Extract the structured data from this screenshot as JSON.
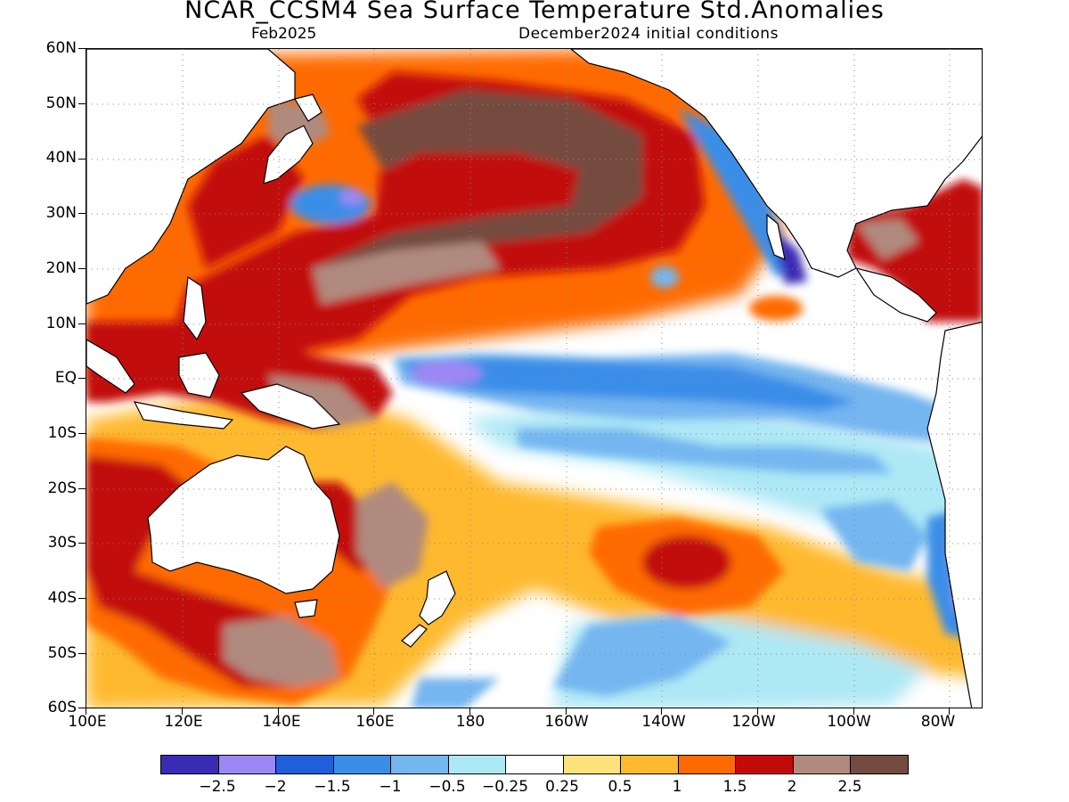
{
  "title": "NCAR_CCSM4 Sea Surface Temperature Std.Anomalies",
  "valid_month": "Feb2025",
  "initial_conditions": "December2024 initial conditions",
  "lat_labels": [
    "60N",
    "50N",
    "40N",
    "30N",
    "20N",
    "10N",
    "EQ",
    "10S",
    "20S",
    "30S",
    "40S",
    "50S",
    "60S"
  ],
  "lon_labels": [
    "100E",
    "120E",
    "140E",
    "160E",
    "180",
    "160W",
    "140W",
    "120W",
    "100W",
    "80W"
  ],
  "colorbar": {
    "colors": [
      "#3a2bb5",
      "#9c87f5",
      "#1f5fd9",
      "#3b8ee8",
      "#74b6f0",
      "#ade8f5",
      "#ffffff",
      "#ffe27a",
      "#ffb92f",
      "#ff6a00",
      "#c20a0a",
      "#b08a7e",
      "#744b40"
    ],
    "labels": [
      "−2.5",
      "−2",
      "−1.5",
      "−1",
      "−0.5",
      "−0.25",
      "0.25",
      "0.5",
      "1",
      "1.5",
      "2",
      "2.5"
    ]
  }
}
